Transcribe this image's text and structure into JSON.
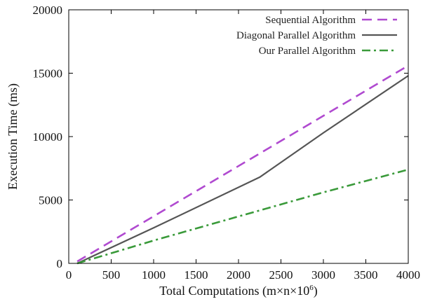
{
  "chart_data": {
    "type": "line",
    "xlabel": "Total Computations (m×n×10",
    "xlabel_superscript": "6",
    "xlabel_suffix": ")",
    "ylabel": "Execution Time (ms)",
    "xlim": [
      0,
      4000
    ],
    "ylim": [
      0,
      20000
    ],
    "x_ticks": [
      0,
      500,
      1000,
      1500,
      2000,
      2500,
      3000,
      3500,
      4000
    ],
    "y_ticks": [
      0,
      5000,
      10000,
      15000,
      20000
    ],
    "x_tick_labels": [
      "0",
      "500",
      "1000",
      "1500",
      "2000",
      "2500",
      "3000",
      "3500",
      "4000"
    ],
    "y_tick_labels": [
      "0",
      "5000",
      "10000",
      "15000",
      "20000"
    ],
    "grid": false,
    "legend_position": "top-right",
    "series": [
      {
        "name": "Sequential Algorithm",
        "color": "#b04ad0",
        "dash": "dashed",
        "points": [
          [
            100,
            150
          ],
          [
            4000,
            15600
          ]
        ]
      },
      {
        "name": "Diagonal Parallel Algorithm",
        "color": "#555555",
        "dash": "solid",
        "points": [
          [
            100,
            0
          ],
          [
            1000,
            2800
          ],
          [
            2250,
            6800
          ],
          [
            3000,
            10300
          ],
          [
            4000,
            14800
          ]
        ]
      },
      {
        "name": "Our Parallel Algorithm",
        "color": "#3a9a3a",
        "dash": "dashdot",
        "points": [
          [
            100,
            0
          ],
          [
            1000,
            1800
          ],
          [
            2000,
            3700
          ],
          [
            3000,
            5600
          ],
          [
            4000,
            7400
          ]
        ]
      }
    ]
  }
}
